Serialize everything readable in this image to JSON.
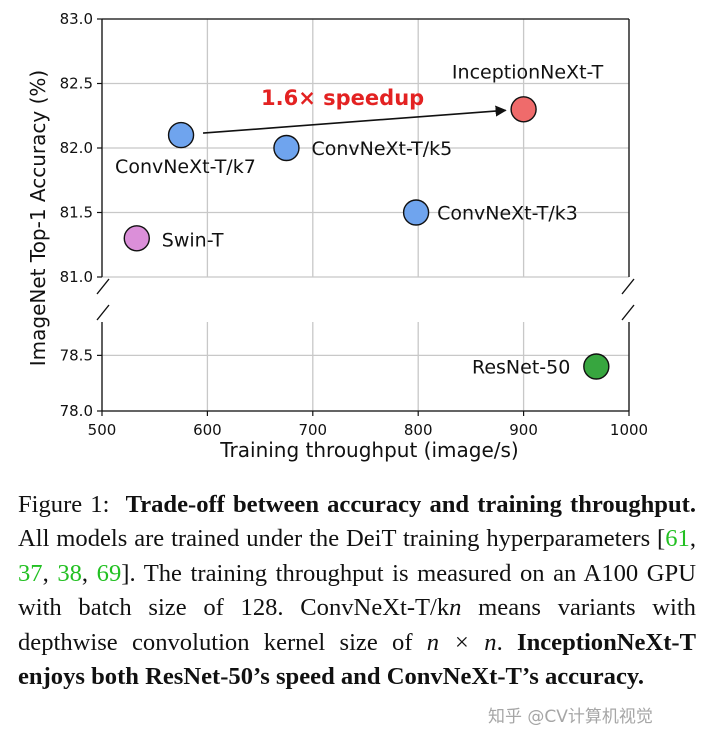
{
  "chart_data": {
    "type": "scatter",
    "xlabel": "Training throughput (image/s)",
    "ylabel": "ImageNet Top-1 Accuracy (%)",
    "xlim": [
      500,
      1000
    ],
    "x_ticks": [
      500,
      600,
      700,
      800,
      900,
      1000
    ],
    "y_upper_range": [
      81.0,
      83.0
    ],
    "y_upper_ticks": [
      "81.0",
      "81.5",
      "82.0",
      "82.5",
      "83.0"
    ],
    "y_lower_range": [
      78.0,
      78.8
    ],
    "y_lower_ticks": [
      "78.0",
      "78.5"
    ],
    "axis_break": true,
    "grid": true,
    "points": [
      {
        "name": "ConvNeXt-T/k7",
        "x": 575,
        "y": 82.1,
        "color": "#6fa4ee"
      },
      {
        "name": "ConvNeXt-T/k5",
        "x": 675,
        "y": 82.0,
        "color": "#6fa4ee"
      },
      {
        "name": "ConvNeXt-T/k3",
        "x": 798,
        "y": 81.5,
        "color": "#6fa4ee"
      },
      {
        "name": "Swin-T",
        "x": 533,
        "y": 81.3,
        "color": "#db8fd9"
      },
      {
        "name": "InceptionNeXt-T",
        "x": 900,
        "y": 82.3,
        "color": "#ef6b6b"
      },
      {
        "name": "ResNet-50",
        "x": 969,
        "y": 78.4,
        "color": "#37a63f"
      }
    ],
    "annotation": {
      "text": "1.6× speedup",
      "color": "#e32222",
      "from": "ConvNeXt-T/k7",
      "to": "InceptionNeXt-T"
    }
  },
  "caption": {
    "figure_label": "Figure 1:",
    "title": "Trade-off between accuracy and training throughput.",
    "s1": "All models are trained under the DeiT training hyperparameters [",
    "refs": [
      "61",
      "37",
      "38",
      "69"
    ],
    "s2": "]. The training throughput is measured on an A100 GPU with batch size of 128. ConvNeXt-T/k",
    "var_n": "n",
    "s3": " means variants with depthwise convolution kernel size of ",
    "var_expr": "n × n",
    "s4": ".",
    "conclusion": "InceptionNeXt-T enjoys both ResNet-50’s speed and ConvNeXt-T’s accuracy."
  },
  "watermark": "知乎 @CV计算机视觉"
}
